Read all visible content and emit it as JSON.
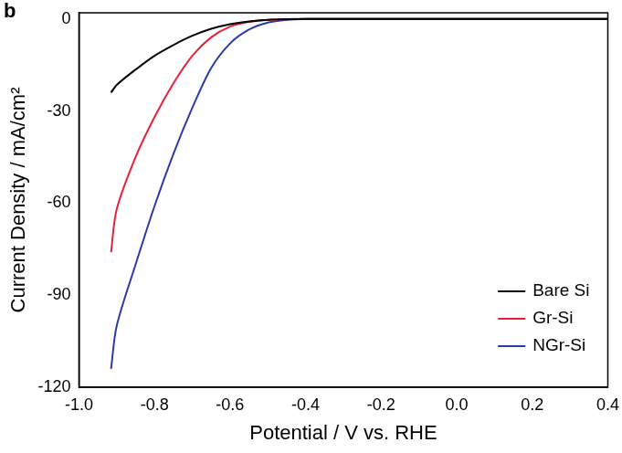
{
  "chart_data": {
    "type": "line",
    "title": "b",
    "x_label": "Potential / V vs. RHE",
    "y_label": "Current Density / mA/cm²",
    "x": [
      -0.915,
      -0.9,
      -0.85,
      -0.8,
      -0.75,
      -0.7,
      -0.65,
      -0.6,
      -0.55,
      -0.5,
      -0.45,
      -0.4,
      -0.3,
      -0.2,
      -0.1,
      0,
      0.1,
      0.2,
      0.3,
      0.4
    ],
    "series": [
      {
        "name": "Bare Si",
        "color": "#000000",
        "values": [
          -24,
          -21.5,
          -16.5,
          -12,
          -8.5,
          -5.5,
          -3.2,
          -1.7,
          -0.8,
          -0.3,
          -0.1,
          0,
          0,
          0,
          0,
          0,
          0,
          0,
          0,
          0
        ]
      },
      {
        "name": "Gr-Si",
        "color": "#e8203a",
        "values": [
          -76,
          -62,
          -45,
          -32,
          -21,
          -12,
          -6,
          -2.5,
          -1,
          -0.3,
          -0.1,
          0,
          0,
          0,
          0,
          0,
          0,
          0,
          0,
          0
        ]
      },
      {
        "name": "NGr-Si",
        "color": "#2a3aa8",
        "values": [
          -114,
          -100,
          -80,
          -61,
          -44,
          -29,
          -16,
          -8,
          -3.5,
          -1.2,
          -0.3,
          0,
          0,
          0,
          0,
          0,
          0,
          0,
          0,
          0
        ]
      }
    ],
    "xlim": [
      -1,
      0.4
    ],
    "xticks": [
      {
        "value": -1,
        "label": "-1.0"
      },
      -0.8,
      -0.6,
      -0.4,
      -0.2,
      {
        "value": 0,
        "label": "0.0"
      },
      0.2,
      0.4
    ],
    "ylim": [
      -120,
      2
    ],
    "yticks": [
      -120,
      -90,
      -60,
      -30,
      0
    ],
    "grid": false,
    "legend": "lower right"
  }
}
